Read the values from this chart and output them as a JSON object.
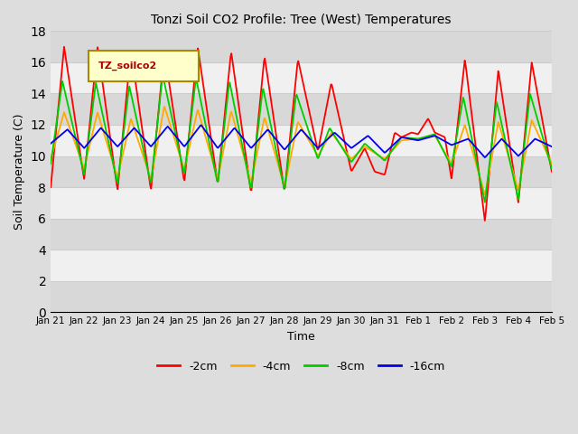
{
  "title": "Tonzi Soil CO2 Profile: Tree (West) Temperatures",
  "xlabel": "Time",
  "ylabel": "Soil Temperature (C)",
  "ylim": [
    0,
    18
  ],
  "yticks": [
    0,
    2,
    4,
    6,
    8,
    10,
    12,
    14,
    16,
    18
  ],
  "legend_label": "TZ_soilco2",
  "series_labels": [
    "-2cm",
    "-4cm",
    "-8cm",
    "-16cm"
  ],
  "series_colors": [
    "#ff0000",
    "#ffaa00",
    "#00cc00",
    "#0000ee"
  ],
  "background_color": "#dddddd",
  "plot_bg_color": "#ffffff",
  "xtick_labels": [
    "Jan 21",
    "Jan 22",
    "Jan 23",
    "Jan 24",
    "Jan 25",
    "Jan 26",
    "Jan 27",
    "Jan 28",
    "Jan 29",
    "Jan 30",
    "Jan 31",
    "Feb 1",
    "Feb 2",
    "Feb 3",
    "Feb 4",
    "Feb 5"
  ],
  "n_ticks": 16,
  "band_colors": [
    "#d8d8d8",
    "#f0f0f0"
  ],
  "grid_color": "#cccccc"
}
